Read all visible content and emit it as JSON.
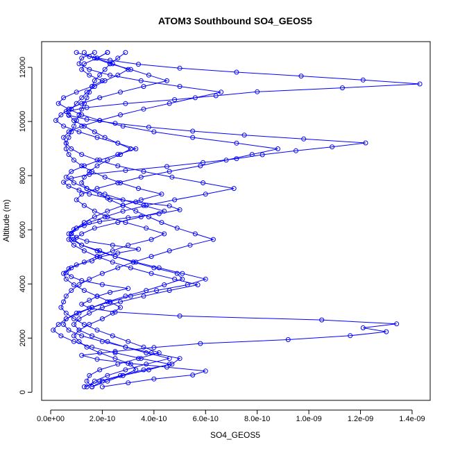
{
  "chart_data": {
    "type": "line",
    "title": "ATOM3 Southbound SO4_GEOS5",
    "xlabel": "SO4_GEOS5",
    "ylabel": "Altitude (m)",
    "xlim": [
      -3.5e-11,
      1.47e-09
    ],
    "ylim": [
      -300,
      12950
    ],
    "x_ticks": [
      0,
      2e-10,
      4e-10,
      6e-10,
      8e-10,
      1e-09,
      1.2e-09,
      1.4e-09
    ],
    "x_tick_labels": [
      "0.0e+00",
      "2.0e-10",
      "4.0e-10",
      "6.0e-10",
      "8.0e-10",
      "1.0e-09",
      "1.2e-09",
      "1.4e-09"
    ],
    "y_ticks": [
      0,
      2000,
      4000,
      6000,
      8000,
      10000,
      12000
    ],
    "y_tick_labels": [
      "0",
      "2000",
      "4000",
      "6000",
      "8000",
      "10000",
      "12000"
    ],
    "grid": false,
    "legend": "none",
    "color": "#0000ff",
    "marker": "open-circle",
    "series": [
      {
        "x": [
          2e-10,
          3e-10,
          4e-10,
          5.5e-10,
          6e-10,
          4.5e-10,
          3e-10,
          1.8e-10,
          1.2e-10,
          2.5e-10,
          4e-10,
          5.8e-10,
          9.2e-10,
          1.16e-09,
          1.3e-09,
          1.21e-09,
          1.34e-09,
          1.05e-09,
          5e-10,
          2.5e-10,
          1.5e-10,
          1.2e-10,
          1.5e-10,
          1.8e-10,
          2.3e-10,
          3e-10,
          2e-10,
          1.2e-10,
          8e-11,
          6e-11,
          7e-11,
          1e-10,
          1.6e-10,
          1.9e-10,
          2.6e-10,
          3.4e-10,
          2.4e-10,
          1.4e-10,
          1e-10,
          8e-11,
          9e-11,
          1.3e-10,
          1.9e-10,
          3e-10,
          4.2e-10,
          5e-10,
          4.6e-10,
          3.3e-10,
          2.2e-10,
          1.5e-10,
          1.1e-10,
          7e-11,
          5e-11,
          8e-11,
          1.5e-10,
          2.9e-10,
          4.5e-10,
          5.9e-10,
          7.2e-10,
          8.2e-10,
          9.5e-10,
          1.09e-09,
          1.22e-09,
          9.8e-10,
          7.5e-10,
          5.5e-10,
          3.8e-10,
          2.5e-10,
          1.4e-10,
          7e-11,
          6e-11,
          1.4e-10,
          2.9e-10,
          4.8e-10,
          6.4e-10,
          8e-10,
          1.13e-09,
          1.43e-09,
          1.21e-09,
          9.7e-10,
          7.2e-10,
          5e-10,
          3.4e-10,
          2.3e-10,
          1.5e-10,
          1.3e-10
        ]
      },
      {
        "x": [
          1e-10,
          1.7e-10,
          2.3e-10,
          3.1e-10,
          3.8e-10,
          4.5e-10,
          3.6e-10,
          2.7e-10,
          1.9e-10,
          1.2e-10,
          7e-11,
          4e-11,
          2e-11,
          5e-11,
          1.1e-10,
          1.8e-10,
          2.6e-10,
          3.3e-10,
          2.6e-10,
          1.9e-10,
          1.3e-10,
          8e-11,
          6e-11,
          9e-11,
          1.4e-10,
          2.1e-10,
          2.8e-10,
          3.6e-10,
          4.4e-10,
          3.5e-10,
          2.6e-10,
          1.7e-10,
          1.2e-10,
          9e-11,
          1.2e-10,
          1.9e-10,
          2.5e-10,
          3.2e-10,
          4e-10,
          4.9e-10,
          5.1e-10,
          4.4e-10,
          3.7e-10,
          2.9e-10,
          2.2e-10,
          1.6e-10,
          1.1e-10,
          6e-11,
          3e-11,
          1e-11,
          4e-11,
          9e-11,
          1.6e-10,
          2.5e-10,
          3.5e-10,
          4.6e-10,
          3.8e-10,
          2.8e-10,
          2e-10,
          1.6e-10
        ]
      },
      {
        "x": [
          1.6e-10,
          2.2e-10,
          2.8e-10,
          3.3e-10,
          3.1e-10,
          2.5e-10,
          1.9e-10,
          1.4e-10,
          1.1e-10,
          9e-11,
          1.1e-10,
          1.5e-10,
          2e-10,
          2.4e-10,
          2.7e-10,
          2.3e-10,
          1.8e-10,
          1.3e-10,
          9e-11,
          6e-11,
          5e-11,
          8e-11,
          1.3e-10,
          1.8e-10,
          2.4e-10,
          3e-10,
          3.9e-10,
          4.4e-10,
          3.7e-10,
          2.9e-10,
          2.2e-10,
          1.7e-10,
          1.3e-10,
          1e-10,
          1.2e-10,
          1.8e-10,
          2.6e-10,
          3.5e-10,
          4.6e-10,
          5.8e-10,
          6.8e-10,
          7.8e-10,
          8.8e-10,
          7.2e-10,
          5.5e-10,
          4e-10,
          2.8e-10,
          1.9e-10,
          1.2e-10,
          7e-11,
          3e-11,
          5e-11,
          1e-10,
          1.6e-10,
          2e-10,
          1.5e-10,
          1.2e-10,
          1.3e-10,
          1.8e-10,
          2.2e-10
        ]
      },
      {
        "x": [
          2.2e-10,
          1.8e-10,
          2.4e-10,
          3e-10,
          2.6e-10,
          2.1e-10,
          1.7e-10,
          1.4e-10,
          1.2e-10,
          1e-10,
          8e-11,
          7e-11,
          9e-11,
          1.3e-10,
          1.7e-10,
          2.1e-10,
          2.6e-10,
          3.1e-10,
          2.7e-10,
          2.2e-10,
          1.8e-10,
          1.5e-10,
          1.3e-10,
          1.2e-10,
          1.4e-10,
          1.9e-10,
          2.3e-10,
          2.8e-10,
          3.3e-10,
          3.8e-10,
          4.3e-10,
          4.9e-10,
          5.6e-10,
          6.3e-10,
          5.4e-10,
          4.6e-10,
          3.9e-10,
          3.2e-10,
          2.6e-10,
          2e-10,
          1.5e-10,
          1.1e-10,
          8e-11,
          6e-11,
          5e-11,
          4e-11,
          6e-11,
          9e-11,
          1.3e-10,
          1.8e-10,
          2.4e-10,
          3e-10,
          3.6e-10,
          4.2e-10,
          3.4e-10,
          2.6e-10,
          1.9e-10,
          1.5e-10,
          1.4e-10,
          1.6e-10
        ]
      },
      {
        "x": [
          1.3e-10,
          1.9e-10,
          2.7e-10,
          3.6e-10,
          4.7e-10,
          5e-10,
          3.9e-10,
          2.9e-10,
          2e-10,
          1.2e-10,
          7e-11,
          5e-11,
          6e-11,
          1e-10,
          1.6e-10,
          2.3e-10,
          3.1e-10,
          4.1e-10,
          5.3e-10,
          6e-10,
          5.1e-10,
          4.2e-10,
          3.3e-10,
          2.5e-10,
          1.8e-10,
          1.2e-10,
          8e-11,
          7e-11,
          1e-10,
          1.5e-10,
          2.1e-10,
          2.8e-10,
          3.7e-10,
          4.8e-10,
          6e-10,
          7.1e-10,
          5.9e-10,
          4.7e-10,
          3.6e-10,
          2.6e-10,
          1.8e-10,
          1.2e-10,
          8e-11,
          6e-11,
          5e-11,
          7e-11,
          1.2e-10,
          1.9e-10,
          2.7e-10,
          3.6e-10,
          4.6e-10,
          5.6e-10,
          6.6e-10,
          5e-10,
          3.5e-10,
          2.3e-10,
          1.5e-10,
          1.1e-10,
          1.2e-10,
          1.7e-10
        ]
      },
      {
        "x": [
          2.9e-10,
          2.6e-10,
          2.3e-10,
          2.1e-10,
          1.9e-10,
          1.7e-10,
          1.6e-10,
          1.5e-10,
          1.4e-10,
          1.3e-10,
          1.2e-10,
          1.1e-10,
          1e-10,
          9e-11,
          8e-11,
          7e-11,
          6e-11,
          6e-11,
          7e-11,
          9e-11,
          1.2e-10,
          1.6e-10,
          2.1e-10,
          2.7e-10,
          3.4e-10,
          4.3e-10,
          3.5e-10,
          2.8e-10,
          2.2e-10,
          1.7e-10,
          1.3e-10,
          1e-10,
          8e-11,
          7e-11,
          9e-11,
          1.3e-10,
          1.8e-10,
          2.4e-10,
          3.1e-10,
          3.9e-10,
          4.8e-10,
          5.7e-10,
          4.6e-10,
          3.6e-10,
          2.7e-10,
          2e-10,
          1.5e-10,
          1.1e-10,
          9e-11,
          1.1e-10,
          1.6e-10,
          2.2e-10,
          2.9e-10,
          3.7e-10,
          4.6e-10,
          3.7e-10,
          2.9e-10,
          2.2e-10,
          1.7e-10,
          1.4e-10
        ]
      }
    ]
  }
}
